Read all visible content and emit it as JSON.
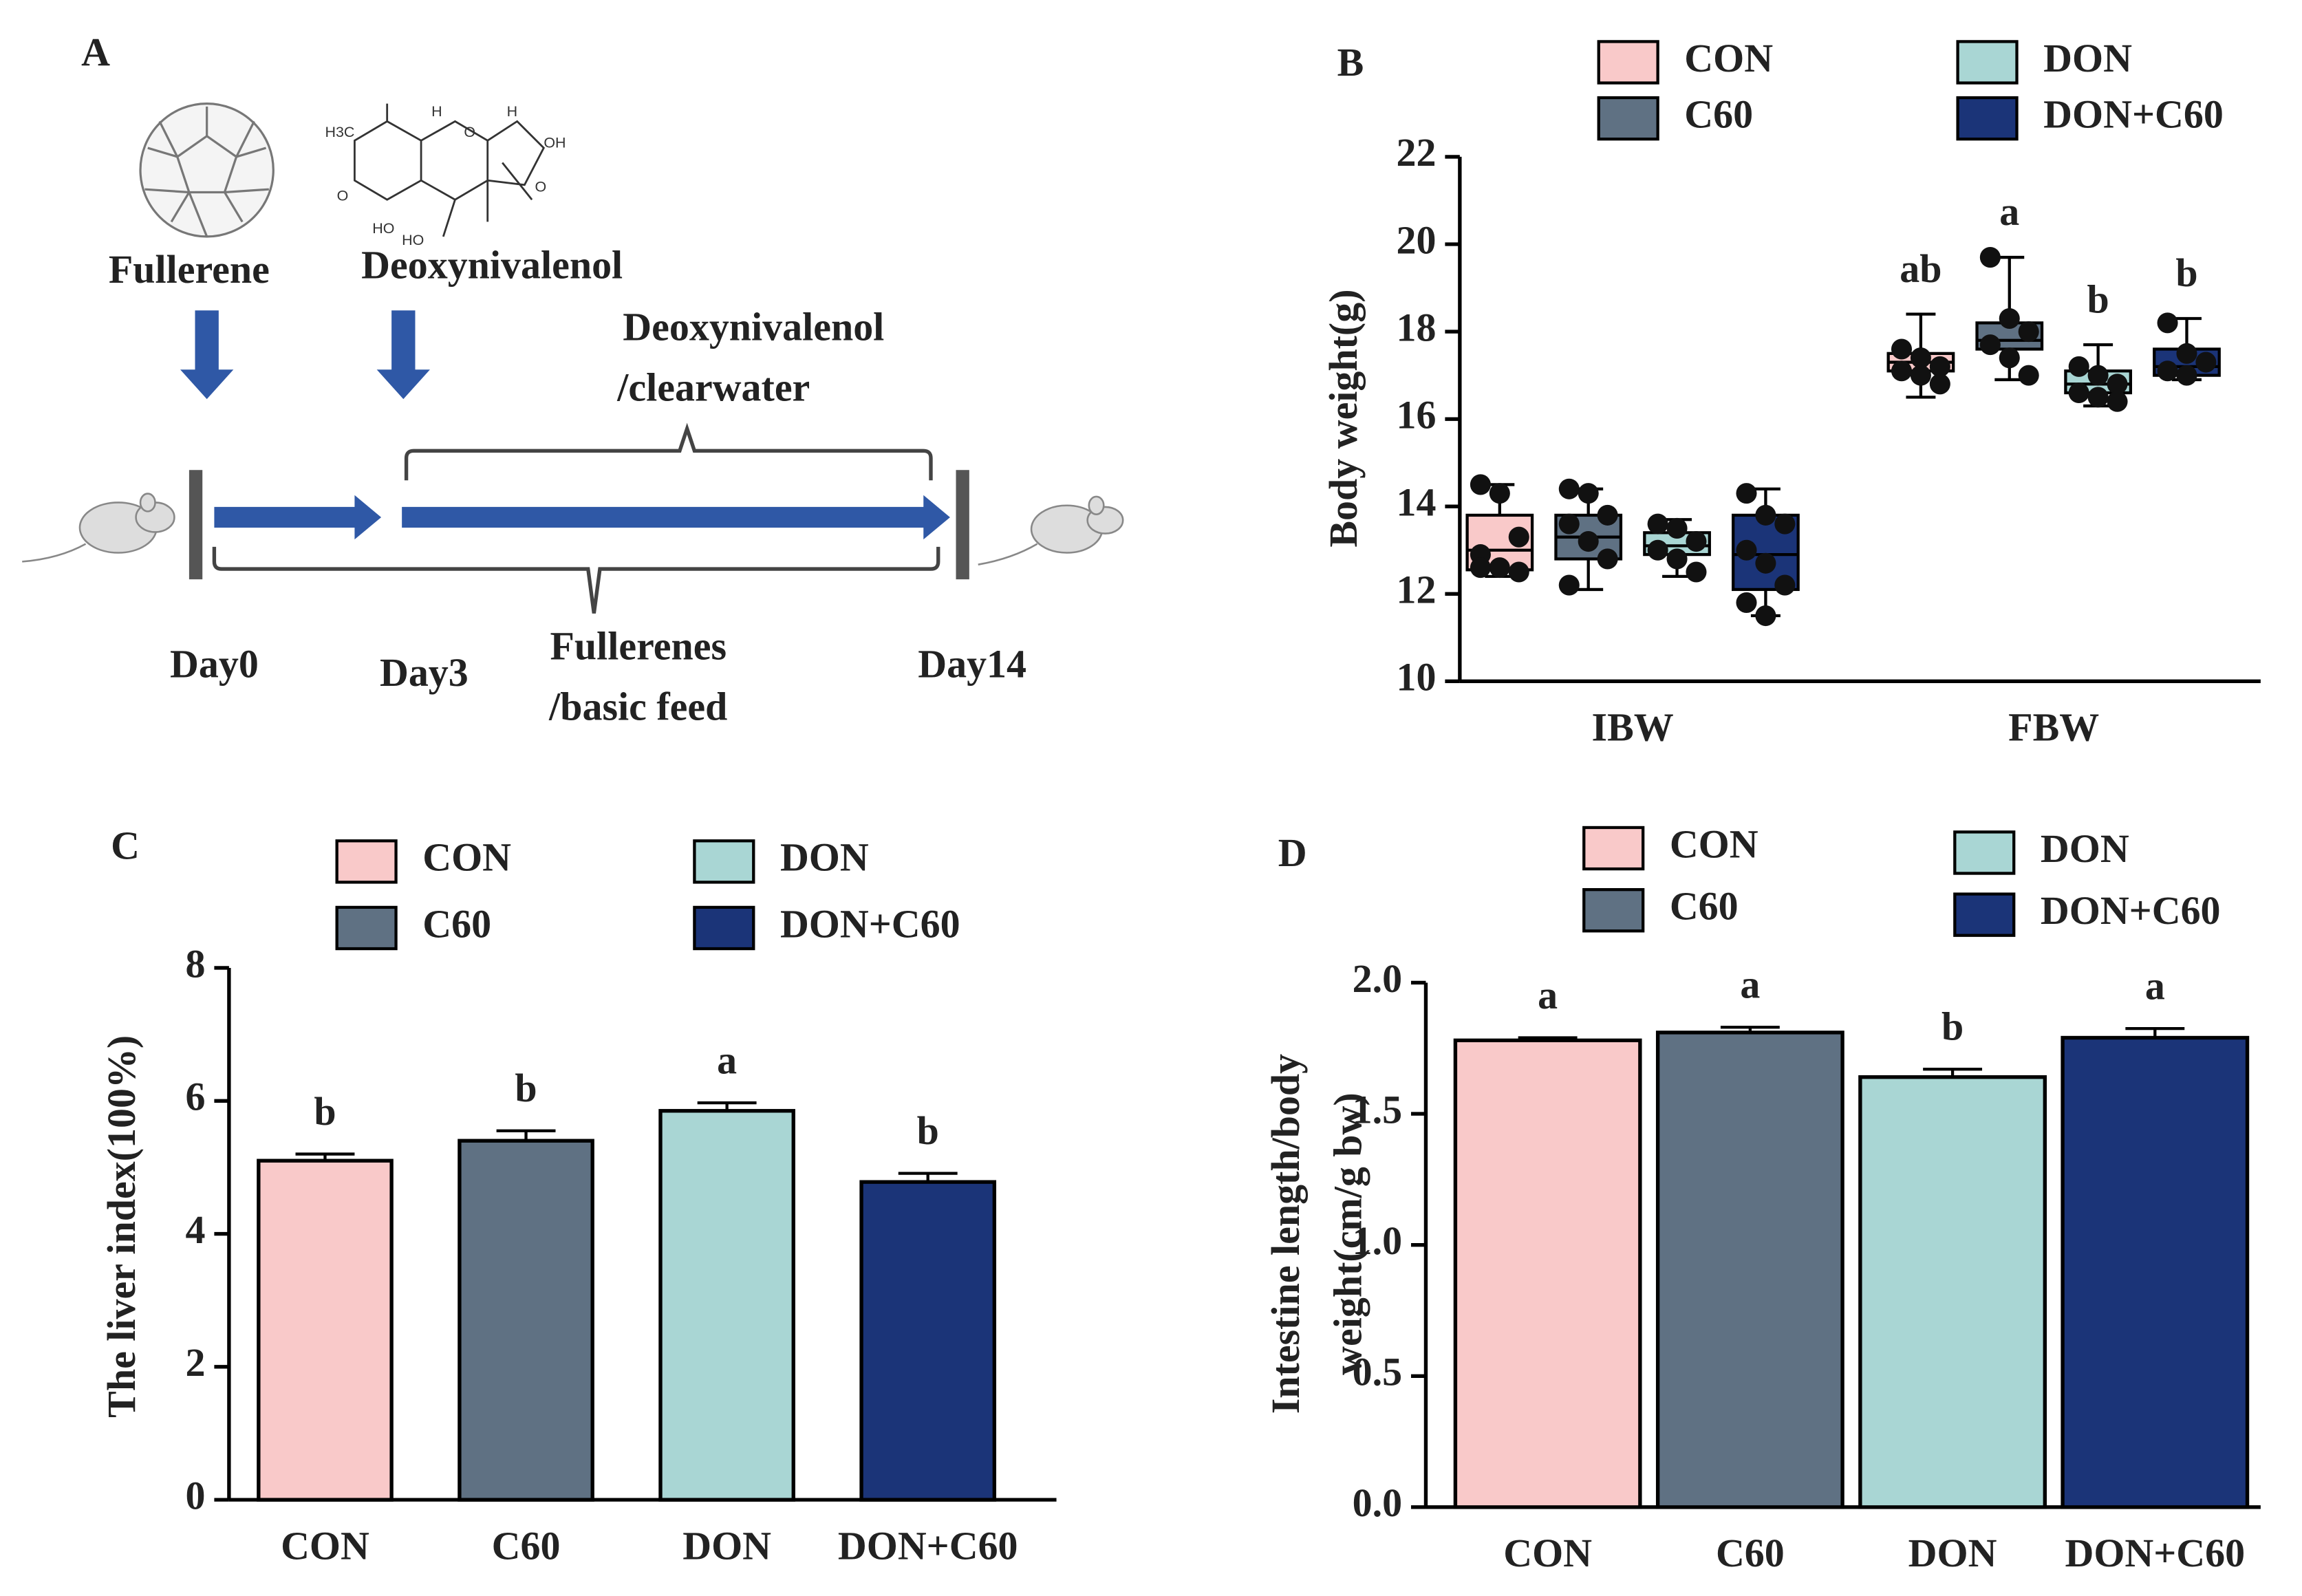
{
  "panel_a": {
    "label": "A",
    "compounds": [
      "Fullerene",
      "Deoxynivalenol"
    ],
    "treatment_top": [
      "Deoxynivalenol",
      "/clearwater"
    ],
    "treatment_bottom": [
      "Fullerenes",
      "/basic feed"
    ],
    "days": [
      "Day0",
      "Day3",
      "Day14"
    ],
    "structure_labels": [
      "H3C",
      "O",
      "HO",
      "HO",
      "H",
      "H",
      "O",
      "OH",
      "O"
    ]
  },
  "chart_data": [
    {
      "type": "box",
      "label": "B",
      "ylabel": [
        "Body weight(g)"
      ],
      "categories": [
        "IBW",
        "FBW"
      ],
      "ylim": [
        10,
        22
      ],
      "yticks": [
        10,
        12,
        14,
        16,
        18,
        20,
        22
      ],
      "series": [
        {
          "name": "CON",
          "color": "#f9c9c9",
          "letters": [
            null,
            "ab"
          ],
          "values": [
            {
              "min": 12.4,
              "q1": 12.55,
              "median": 13.0,
              "q3": 13.8,
              "max": 14.5,
              "points": [
                14.5,
                14.3,
                13.3,
                12.9,
                12.6,
                12.5,
                12.6
              ]
            },
            {
              "min": 16.5,
              "q1": 17.1,
              "median": 17.3,
              "q3": 17.5,
              "max": 18.4,
              "points": [
                17.6,
                17.4,
                17.2,
                17.1,
                17.0,
                16.8
              ]
            }
          ]
        },
        {
          "name": "C60",
          "color": "#5f7183",
          "letters": [
            null,
            "a"
          ],
          "values": [
            {
              "min": 12.1,
              "q1": 12.8,
              "median": 13.3,
              "q3": 13.8,
              "max": 14.4,
              "points": [
                14.4,
                14.3,
                13.8,
                13.6,
                13.2,
                12.8,
                12.2
              ]
            },
            {
              "min": 16.9,
              "q1": 17.6,
              "median": 17.8,
              "q3": 18.2,
              "max": 19.7,
              "points": [
                19.7,
                18.3,
                18.0,
                17.7,
                17.4,
                17.0
              ]
            }
          ]
        },
        {
          "name": "DON",
          "color": "#a9d6d4",
          "letters": [
            null,
            "b"
          ],
          "values": [
            {
              "min": 12.4,
              "q1": 12.9,
              "median": 13.1,
              "q3": 13.4,
              "max": 13.7,
              "points": [
                13.6,
                13.5,
                13.2,
                13.0,
                12.8,
                12.5
              ]
            },
            {
              "min": 16.3,
              "q1": 16.6,
              "median": 16.8,
              "q3": 17.1,
              "max": 17.7,
              "points": [
                17.2,
                17.0,
                16.8,
                16.6,
                16.5,
                16.4
              ]
            }
          ]
        },
        {
          "name": "DON+C60",
          "color": "#1b3478",
          "letters": [
            null,
            "b"
          ],
          "values": [
            {
              "min": 11.5,
              "q1": 12.1,
              "median": 12.9,
              "q3": 13.8,
              "max": 14.4,
              "points": [
                14.3,
                13.8,
                13.6,
                13.0,
                12.7,
                12.2,
                11.8,
                11.5
              ]
            },
            {
              "min": 16.9,
              "q1": 17.0,
              "median": 17.2,
              "q3": 17.6,
              "max": 18.3,
              "points": [
                18.2,
                17.5,
                17.3,
                17.1,
                17.0
              ]
            }
          ]
        }
      ]
    },
    {
      "type": "bar",
      "label": "C",
      "ylabel": [
        "The liver index(100%)"
      ],
      "categories": [
        "CON",
        "C60",
        "DON",
        "DON+C60"
      ],
      "colors": [
        "#f9c9c9",
        "#5f7183",
        "#a9d6d4",
        "#1b3478"
      ],
      "values": [
        5.1,
        5.4,
        5.85,
        4.78
      ],
      "errors": [
        0.1,
        0.15,
        0.12,
        0.13
      ],
      "letters": [
        "b",
        "b",
        "a",
        "b"
      ],
      "ylim": [
        0,
        8
      ],
      "yticks": [
        0,
        2,
        4,
        6,
        8
      ]
    },
    {
      "type": "bar",
      "label": "D",
      "ylabel": [
        "Intestine length/body",
        "weight(cm/g bw)"
      ],
      "categories": [
        "CON",
        "C60",
        "DON",
        "DON+C60"
      ],
      "colors": [
        "#f9c9c9",
        "#5f7183",
        "#a9d6d4",
        "#1b3478"
      ],
      "values": [
        1.78,
        1.81,
        1.64,
        1.79
      ],
      "errors": [
        0.01,
        0.02,
        0.03,
        0.035
      ],
      "letters": [
        "a",
        "a",
        "b",
        "a"
      ],
      "ylim": [
        0,
        2
      ],
      "yticks": [
        {
          "value": 0,
          "label": "0.0"
        },
        {
          "value": 0.5,
          "label": "0.5"
        },
        {
          "value": 1,
          "label": "1.0"
        },
        {
          "value": 1.5,
          "label": "1.5"
        },
        {
          "value": 2,
          "label": "2.0"
        }
      ]
    }
  ]
}
